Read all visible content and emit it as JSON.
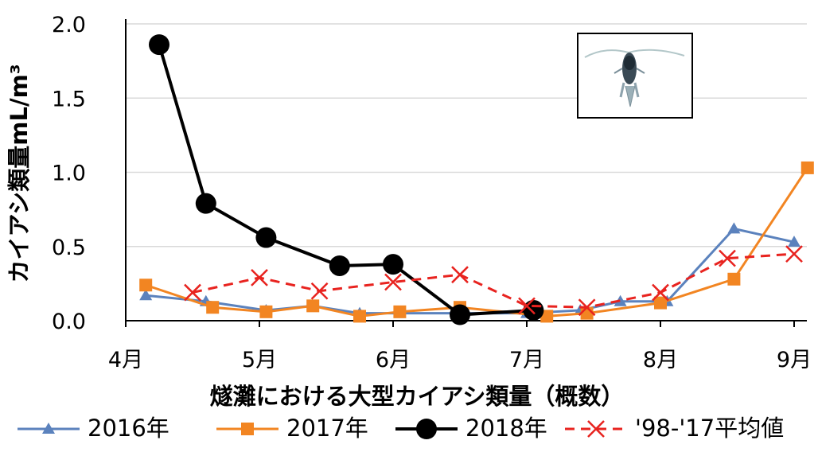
{
  "chart_data": {
    "type": "line",
    "xlabel": "燧灘における大型カイアシ類量（概数）",
    "ylabel": "カイアシ類量mL/m³",
    "ylim": [
      0,
      2.0
    ],
    "xlim": [
      4,
      9.1
    ],
    "y_ticks": [
      "0.0",
      "0.5",
      "1.0",
      "1.5",
      "2.0"
    ],
    "x_ticks": [
      {
        "label": "4月",
        "value": 4
      },
      {
        "label": "5月",
        "value": 5
      },
      {
        "label": "6月",
        "value": 6
      },
      {
        "label": "7月",
        "value": 7
      },
      {
        "label": "8月",
        "value": 8
      },
      {
        "label": "9月",
        "value": 9
      }
    ],
    "grid": "horizontal",
    "legend_position": "bottom",
    "series": [
      {
        "name": "2016年",
        "color": "#5b82bd",
        "marker": "triangle",
        "line": "solid",
        "points": [
          [
            4.15,
            0.17
          ],
          [
            4.6,
            0.13
          ],
          [
            5.05,
            0.07
          ],
          [
            5.4,
            0.1
          ],
          [
            5.75,
            0.05
          ],
          [
            6.05,
            0.05
          ],
          [
            6.5,
            0.05
          ],
          [
            7.0,
            0.05
          ],
          [
            7.4,
            0.07
          ],
          [
            7.7,
            0.13
          ],
          [
            8.05,
            0.13
          ],
          [
            8.55,
            0.62
          ],
          [
            9.0,
            0.53
          ]
        ]
      },
      {
        "name": "2017年",
        "color": "#f28522",
        "marker": "square",
        "line": "solid",
        "points": [
          [
            4.15,
            0.24
          ],
          [
            4.65,
            0.09
          ],
          [
            5.05,
            0.06
          ],
          [
            5.4,
            0.1
          ],
          [
            5.75,
            0.03
          ],
          [
            6.05,
            0.06
          ],
          [
            6.5,
            0.09
          ],
          [
            7.15,
            0.03
          ],
          [
            7.45,
            0.05
          ],
          [
            8.0,
            0.12
          ],
          [
            8.55,
            0.28
          ],
          [
            9.1,
            1.03
          ]
        ]
      },
      {
        "name": "2018年",
        "color": "#000000",
        "marker": "circle",
        "line": "solid",
        "points": [
          [
            4.25,
            1.86
          ],
          [
            4.6,
            0.79
          ],
          [
            5.05,
            0.56
          ],
          [
            5.6,
            0.37
          ],
          [
            6.0,
            0.38
          ],
          [
            6.5,
            0.04
          ],
          [
            7.05,
            0.07
          ]
        ]
      },
      {
        "name": "'98-'17平均値",
        "color": "#e8231f",
        "marker": "x",
        "line": "dashed",
        "points": [
          [
            4.5,
            0.19
          ],
          [
            5.0,
            0.29
          ],
          [
            5.45,
            0.2
          ],
          [
            6.0,
            0.26
          ],
          [
            6.5,
            0.31
          ],
          [
            7.0,
            0.1
          ],
          [
            7.45,
            0.09
          ],
          [
            8.0,
            0.19
          ],
          [
            8.5,
            0.42
          ],
          [
            9.0,
            0.45
          ]
        ]
      }
    ]
  }
}
